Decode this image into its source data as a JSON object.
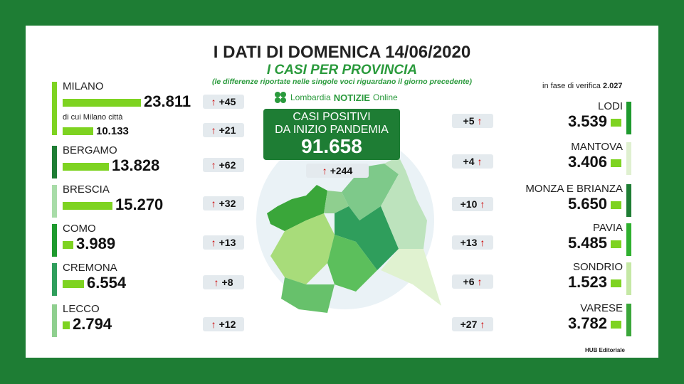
{
  "header": {
    "title": "I DATI DI DOMENICA 14/06/2020",
    "subtitle": "I CASI PER PROVINCIA",
    "note": "(le differenze riportate nelle singole voci riguardano il giorno precedente)"
  },
  "logo": {
    "name": "Lombardia",
    "brand": "NOTIZIE",
    "suffix": "Online"
  },
  "center": {
    "label_line1": "CASI POSITIVI",
    "label_line2": "DA INIZIO PANDEMIA",
    "total": "91.658",
    "delta": "+244"
  },
  "verification": {
    "label": "in fase di verifica",
    "value": "2.027"
  },
  "left_provinces": [
    {
      "name": "MILANO",
      "total": "23.811",
      "delta": "+45"
    },
    {
      "name": "BERGAMO",
      "total": "13.828",
      "delta": "+62"
    },
    {
      "name": "BRESCIA",
      "total": "15.270",
      "delta": "+32"
    },
    {
      "name": "COMO",
      "total": "3.989",
      "delta": "+13"
    },
    {
      "name": "CREMONA",
      "total": "6.554",
      "delta": "+8"
    },
    {
      "name": "LECCO",
      "total": "2.794",
      "delta": "+12"
    }
  ],
  "milano_city": {
    "label": "di cui Milano città",
    "total": "10.133",
    "delta": "+21"
  },
  "right_provinces": [
    {
      "name": "LODI",
      "total": "3.539",
      "delta": "+5"
    },
    {
      "name": "MANTOVA",
      "total": "3.406",
      "delta": "+4"
    },
    {
      "name": "MONZA E BRIANZA",
      "total": "5.650",
      "delta": "+10"
    },
    {
      "name": "PAVIA",
      "total": "5.485",
      "delta": "+13"
    },
    {
      "name": "SONDRIO",
      "total": "1.523",
      "delta": "+6"
    },
    {
      "name": "VARESE",
      "total": "3.782",
      "delta": "+27"
    }
  ],
  "footer": {
    "credit": "HUB Editoriale"
  }
}
